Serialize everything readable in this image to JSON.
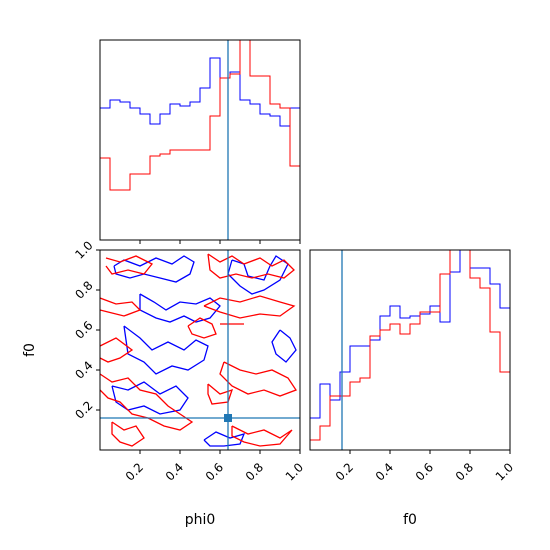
{
  "colors": {
    "series_a": "#0000ff",
    "series_b": "#ff0000",
    "truth": "#1f77b4",
    "axes": "#000000"
  },
  "labels": {
    "x_phi0": "phi0",
    "x_f0": "f0",
    "y_f0": "f0"
  },
  "chart_data": [
    {
      "id": "phi0-marginal",
      "type": "histogram-step",
      "xlim": [
        0,
        1
      ],
      "x_ticks": [
        0.2,
        0.4,
        0.6,
        0.8,
        1.0
      ],
      "x_tick_labels_shown": false,
      "truth_x": 0.64,
      "bin_edges": [
        0,
        0.05,
        0.1,
        0.15,
        0.2,
        0.25,
        0.3,
        0.35,
        0.4,
        0.45,
        0.5,
        0.55,
        0.6,
        0.65,
        0.7,
        0.75,
        0.8,
        0.85,
        0.9,
        0.95,
        1.0
      ],
      "series": [
        {
          "color_key": "series_a",
          "values": [
            0.66,
            0.7,
            0.69,
            0.66,
            0.63,
            0.58,
            0.63,
            0.68,
            0.67,
            0.69,
            0.76,
            0.91,
            0.81,
            0.84,
            0.7,
            0.68,
            0.63,
            0.62,
            0.57,
            0.66
          ]
        },
        {
          "color_key": "series_b",
          "values": [
            0.41,
            0.25,
            0.25,
            0.33,
            0.33,
            0.42,
            0.43,
            0.45,
            0.45,
            0.45,
            0.45,
            0.62,
            0.81,
            0.83,
            1.1,
            0.82,
            0.82,
            0.68,
            0.66,
            0.37
          ]
        }
      ]
    },
    {
      "id": "joint-phi0-f0",
      "type": "contour",
      "xlim": [
        0,
        1
      ],
      "ylim": [
        0,
        1
      ],
      "x_ticks": [
        0.2,
        0.4,
        0.6,
        0.8,
        1.0
      ],
      "y_ticks": [
        0.2,
        0.4,
        0.6,
        0.8,
        1.0
      ],
      "tick_labels": [
        "0.2",
        "0.4",
        "0.6",
        "0.8",
        "1.0"
      ],
      "truth": {
        "x": 0.64,
        "y": 0.16
      },
      "contours": [
        {
          "color_key": "series_a",
          "points": [
            [
              0.07,
              0.92
            ],
            [
              0.12,
              0.95
            ],
            [
              0.2,
              0.92
            ],
            [
              0.28,
              0.96
            ],
            [
              0.36,
              0.93
            ],
            [
              0.42,
              0.97
            ],
            [
              0.47,
              0.94
            ],
            [
              0.45,
              0.88
            ],
            [
              0.38,
              0.84
            ],
            [
              0.3,
              0.86
            ],
            [
              0.22,
              0.88
            ],
            [
              0.15,
              0.86
            ],
            [
              0.08,
              0.88
            ],
            [
              0.07,
              0.92
            ]
          ]
        },
        {
          "color_key": "series_a",
          "points": [
            [
              0.66,
              0.95
            ],
            [
              0.72,
              0.93
            ],
            [
              0.74,
              0.87
            ],
            [
              0.82,
              0.85
            ],
            [
              0.85,
              0.92
            ],
            [
              0.88,
              0.97
            ],
            [
              0.94,
              0.93
            ],
            [
              0.9,
              0.85
            ],
            [
              0.82,
              0.8
            ],
            [
              0.76,
              0.78
            ],
            [
              0.7,
              0.82
            ],
            [
              0.64,
              0.88
            ],
            [
              0.66,
              0.95
            ]
          ]
        },
        {
          "color_key": "series_a",
          "points": [
            [
              0.2,
              0.78
            ],
            [
              0.27,
              0.74
            ],
            [
              0.33,
              0.7
            ],
            [
              0.4,
              0.74
            ],
            [
              0.48,
              0.73
            ],
            [
              0.55,
              0.76
            ],
            [
              0.6,
              0.72
            ],
            [
              0.55,
              0.66
            ],
            [
              0.48,
              0.64
            ],
            [
              0.42,
              0.67
            ],
            [
              0.35,
              0.64
            ],
            [
              0.28,
              0.66
            ],
            [
              0.2,
              0.7
            ],
            [
              0.2,
              0.78
            ]
          ]
        },
        {
          "color_key": "series_a",
          "points": [
            [
              0.12,
              0.62
            ],
            [
              0.2,
              0.56
            ],
            [
              0.26,
              0.5
            ],
            [
              0.34,
              0.54
            ],
            [
              0.42,
              0.5
            ],
            [
              0.48,
              0.55
            ],
            [
              0.54,
              0.52
            ],
            [
              0.52,
              0.45
            ],
            [
              0.44,
              0.4
            ],
            [
              0.36,
              0.42
            ],
            [
              0.28,
              0.38
            ],
            [
              0.22,
              0.44
            ],
            [
              0.14,
              0.48
            ],
            [
              0.12,
              0.62
            ]
          ]
        },
        {
          "color_key": "series_a",
          "points": [
            [
              0.06,
              0.32
            ],
            [
              0.14,
              0.3
            ],
            [
              0.22,
              0.34
            ],
            [
              0.3,
              0.28
            ],
            [
              0.38,
              0.32
            ],
            [
              0.44,
              0.26
            ],
            [
              0.4,
              0.2
            ],
            [
              0.3,
              0.18
            ],
            [
              0.22,
              0.22
            ],
            [
              0.14,
              0.2
            ],
            [
              0.08,
              0.24
            ],
            [
              0.06,
              0.32
            ]
          ]
        },
        {
          "color_key": "series_a",
          "points": [
            [
              0.52,
              0.05
            ],
            [
              0.58,
              0.09
            ],
            [
              0.65,
              0.06
            ],
            [
              0.72,
              0.08
            ],
            [
              0.7,
              0.03
            ],
            [
              0.62,
              0.02
            ],
            [
              0.55,
              0.02
            ],
            [
              0.52,
              0.05
            ]
          ]
        },
        {
          "color_key": "series_a",
          "points": [
            [
              0.9,
              0.6
            ],
            [
              0.95,
              0.56
            ],
            [
              0.98,
              0.5
            ],
            [
              0.93,
              0.44
            ],
            [
              0.88,
              0.48
            ],
            [
              0.86,
              0.54
            ],
            [
              0.9,
              0.6
            ]
          ]
        },
        {
          "color_key": "series_b",
          "points": [
            [
              0.03,
              0.96
            ],
            [
              0.1,
              0.94
            ],
            [
              0.18,
              0.97
            ],
            [
              0.26,
              0.93
            ],
            [
              0.22,
              0.88
            ],
            [
              0.14,
              0.9
            ],
            [
              0.06,
              0.88
            ],
            [
              0.03,
              0.92
            ]
          ]
        },
        {
          "color_key": "series_b",
          "points": [
            [
              0.54,
              0.98
            ],
            [
              0.6,
              0.94
            ],
            [
              0.66,
              0.97
            ],
            [
              0.72,
              0.93
            ],
            [
              0.8,
              0.96
            ],
            [
              0.86,
              0.92
            ],
            [
              0.92,
              0.95
            ],
            [
              0.97,
              0.9
            ],
            [
              0.92,
              0.86
            ],
            [
              0.84,
              0.88
            ],
            [
              0.76,
              0.86
            ],
            [
              0.68,
              0.88
            ],
            [
              0.6,
              0.86
            ],
            [
              0.55,
              0.9
            ],
            [
              0.54,
              0.98
            ]
          ]
        },
        {
          "color_key": "series_b",
          "points": [
            [
              0.52,
              0.72
            ],
            [
              0.6,
              0.76
            ],
            [
              0.7,
              0.74
            ],
            [
              0.8,
              0.77
            ],
            [
              0.9,
              0.74
            ],
            [
              0.97,
              0.72
            ],
            [
              0.9,
              0.67
            ],
            [
              0.8,
              0.68
            ],
            [
              0.7,
              0.66
            ],
            [
              0.6,
              0.69
            ],
            [
              0.52,
              0.72
            ]
          ]
        },
        {
          "color_key": "series_b",
          "points": [
            [
              0.0,
              0.76
            ],
            [
              0.08,
              0.73
            ],
            [
              0.16,
              0.74
            ],
            [
              0.2,
              0.7
            ],
            [
              0.12,
              0.67
            ],
            [
              0.04,
              0.69
            ],
            [
              0.0,
              0.7
            ]
          ]
        },
        {
          "color_key": "series_b",
          "points": [
            [
              0.44,
              0.62
            ],
            [
              0.5,
              0.66
            ],
            [
              0.56,
              0.63
            ],
            [
              0.58,
              0.58
            ],
            [
              0.52,
              0.56
            ],
            [
              0.46,
              0.58
            ],
            [
              0.44,
              0.62
            ]
          ]
        },
        {
          "color_key": "series_b",
          "points": [
            [
              0.0,
              0.52
            ],
            [
              0.08,
              0.56
            ],
            [
              0.16,
              0.5
            ],
            [
              0.1,
              0.46
            ],
            [
              0.04,
              0.44
            ],
            [
              0.0,
              0.46
            ]
          ]
        },
        {
          "color_key": "series_b",
          "points": [
            [
              0.62,
              0.44
            ],
            [
              0.7,
              0.4
            ],
            [
              0.78,
              0.38
            ],
            [
              0.86,
              0.4
            ],
            [
              0.94,
              0.36
            ],
            [
              0.98,
              0.3
            ],
            [
              0.9,
              0.27
            ],
            [
              0.82,
              0.3
            ],
            [
              0.74,
              0.28
            ],
            [
              0.66,
              0.32
            ],
            [
              0.6,
              0.38
            ],
            [
              0.62,
              0.44
            ]
          ]
        },
        {
          "color_key": "series_b",
          "points": [
            [
              0.0,
              0.38
            ],
            [
              0.06,
              0.34
            ],
            [
              0.14,
              0.36
            ],
            [
              0.2,
              0.3
            ],
            [
              0.28,
              0.28
            ],
            [
              0.34,
              0.22
            ],
            [
              0.4,
              0.18
            ],
            [
              0.46,
              0.14
            ],
            [
              0.4,
              0.1
            ],
            [
              0.32,
              0.12
            ],
            [
              0.24,
              0.16
            ],
            [
              0.16,
              0.18
            ],
            [
              0.1,
              0.24
            ],
            [
              0.04,
              0.26
            ],
            [
              0.0,
              0.3
            ]
          ]
        },
        {
          "color_key": "series_b",
          "points": [
            [
              0.06,
              0.14
            ],
            [
              0.12,
              0.1
            ],
            [
              0.18,
              0.12
            ],
            [
              0.22,
              0.06
            ],
            [
              0.16,
              0.02
            ],
            [
              0.1,
              0.04
            ],
            [
              0.06,
              0.08
            ],
            [
              0.06,
              0.14
            ]
          ]
        },
        {
          "color_key": "series_b",
          "points": [
            [
              0.66,
              0.12
            ],
            [
              0.74,
              0.08
            ],
            [
              0.82,
              0.1
            ],
            [
              0.9,
              0.06
            ],
            [
              0.96,
              0.1
            ],
            [
              0.9,
              0.03
            ],
            [
              0.8,
              0.02
            ],
            [
              0.72,
              0.04
            ],
            [
              0.66,
              0.07
            ],
            [
              0.66,
              0.12
            ]
          ]
        },
        {
          "color_key": "series_b",
          "points": [
            [
              0.54,
              0.33
            ],
            [
              0.6,
              0.28
            ],
            [
              0.66,
              0.3
            ],
            [
              0.64,
              0.24
            ],
            [
              0.56,
              0.23
            ],
            [
              0.54,
              0.28
            ],
            [
              0.54,
              0.33
            ]
          ]
        },
        {
          "color_key": "series_b",
          "points": [
            [
              0.6,
              0.63
            ],
            [
              0.72,
              0.63
            ]
          ]
        }
      ]
    },
    {
      "id": "f0-marginal",
      "type": "histogram-step",
      "xlim": [
        0,
        1
      ],
      "x_ticks": [
        0.2,
        0.4,
        0.6,
        0.8,
        1.0
      ],
      "tick_labels": [
        "0.2",
        "0.4",
        "0.6",
        "0.8",
        "1.0"
      ],
      "truth_x": 0.16,
      "bin_edges": [
        0,
        0.05,
        0.1,
        0.15,
        0.2,
        0.25,
        0.3,
        0.35,
        0.4,
        0.45,
        0.5,
        0.55,
        0.6,
        0.65,
        0.7,
        0.75,
        0.8,
        0.85,
        0.9,
        0.95,
        1.0
      ],
      "series": [
        {
          "color_key": "series_a",
          "values": [
            0.16,
            0.33,
            0.25,
            0.39,
            0.52,
            0.52,
            0.55,
            0.67,
            0.72,
            0.66,
            0.67,
            0.68,
            0.72,
            0.64,
            0.89,
            1.0,
            0.91,
            0.91,
            0.83,
            0.71
          ]
        },
        {
          "color_key": "series_b",
          "values": [
            0.05,
            0.12,
            0.27,
            0.27,
            0.34,
            0.36,
            0.57,
            0.6,
            0.63,
            0.58,
            0.63,
            0.69,
            0.69,
            0.88,
            1.15,
            1.15,
            0.86,
            0.81,
            0.59,
            0.39
          ]
        }
      ]
    }
  ]
}
